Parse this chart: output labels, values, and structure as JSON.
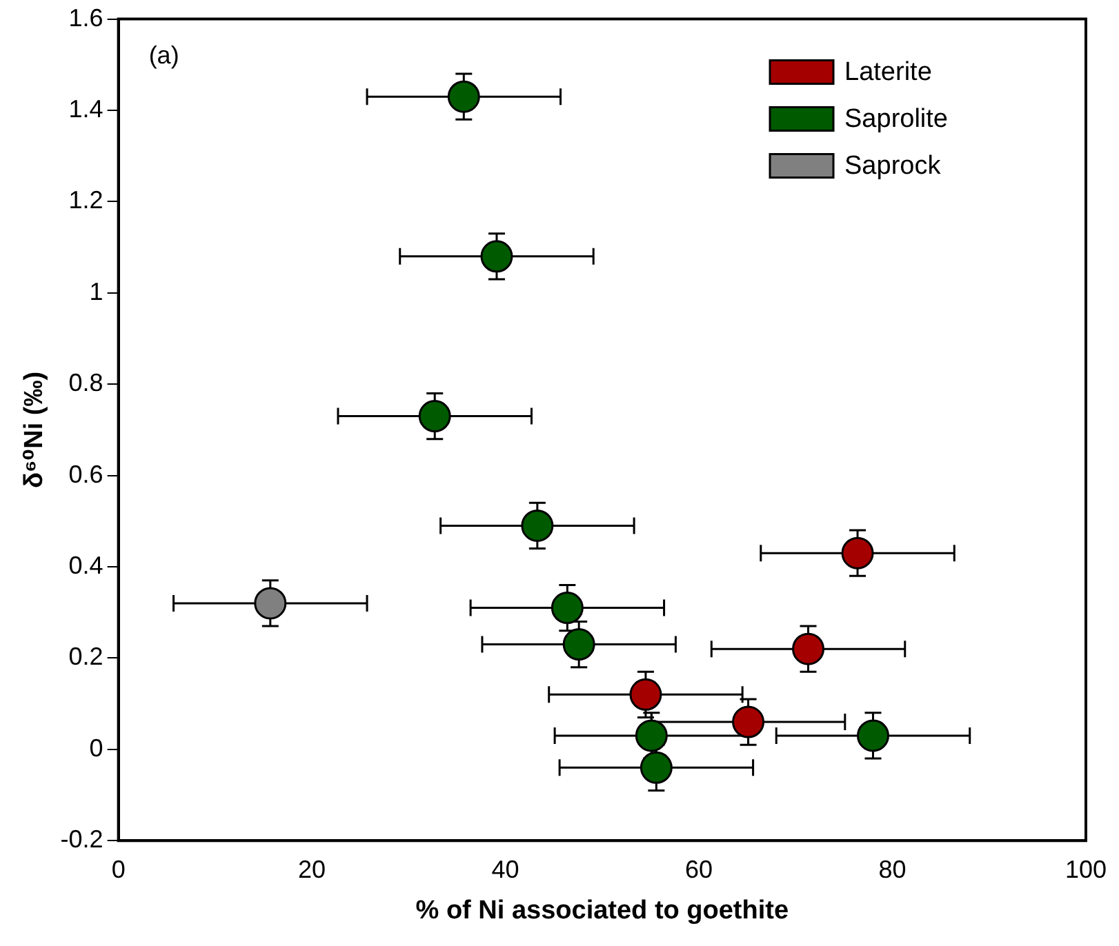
{
  "chart_data": {
    "type": "scatter",
    "xlabel": "% of Ni associated to goethite",
    "ylabel": "δ⁶⁰Ni (‰)",
    "annotations": [
      "(a)"
    ],
    "xlim": [
      0,
      100
    ],
    "xticks": [
      0,
      20,
      40,
      60,
      80,
      100
    ],
    "ylim": [
      -0.2,
      1.6
    ],
    "yticks": [
      -0.2,
      0,
      0.2,
      0.4,
      0.6,
      0.8,
      1,
      1.2,
      1.4,
      1.6
    ],
    "grid": false,
    "legend": "top right",
    "marker": "circle",
    "series": [
      {
        "name": "Laterite",
        "color": "#a50000",
        "x": [
          76.4,
          71.3,
          54.5,
          65.1
        ],
        "values": [
          0.43,
          0.22,
          0.12,
          0.06
        ],
        "xerrors": [
          10,
          10,
          10,
          10
        ],
        "errors": [
          0.05,
          0.05,
          0.05,
          0.05
        ]
      },
      {
        "name": "Saprolite",
        "color": "#005a00",
        "x": [
          35.7,
          39.1,
          32.7,
          43.3,
          46.4,
          47.6,
          55.1,
          78.0,
          55.6
        ],
        "values": [
          1.43,
          1.08,
          0.73,
          0.49,
          0.31,
          0.23,
          0.03,
          0.03,
          -0.04
        ],
        "xerrors": [
          10,
          10,
          10,
          10,
          10,
          10,
          10,
          10,
          10
        ],
        "errors": [
          0.05,
          0.05,
          0.05,
          0.05,
          0.05,
          0.05,
          0.05,
          0.05,
          0.05
        ]
      },
      {
        "name": "Saprock",
        "color": "#808080",
        "x": [
          15.7
        ],
        "values": [
          0.32
        ],
        "xerrors": [
          10
        ],
        "errors": [
          0.05
        ]
      }
    ]
  }
}
